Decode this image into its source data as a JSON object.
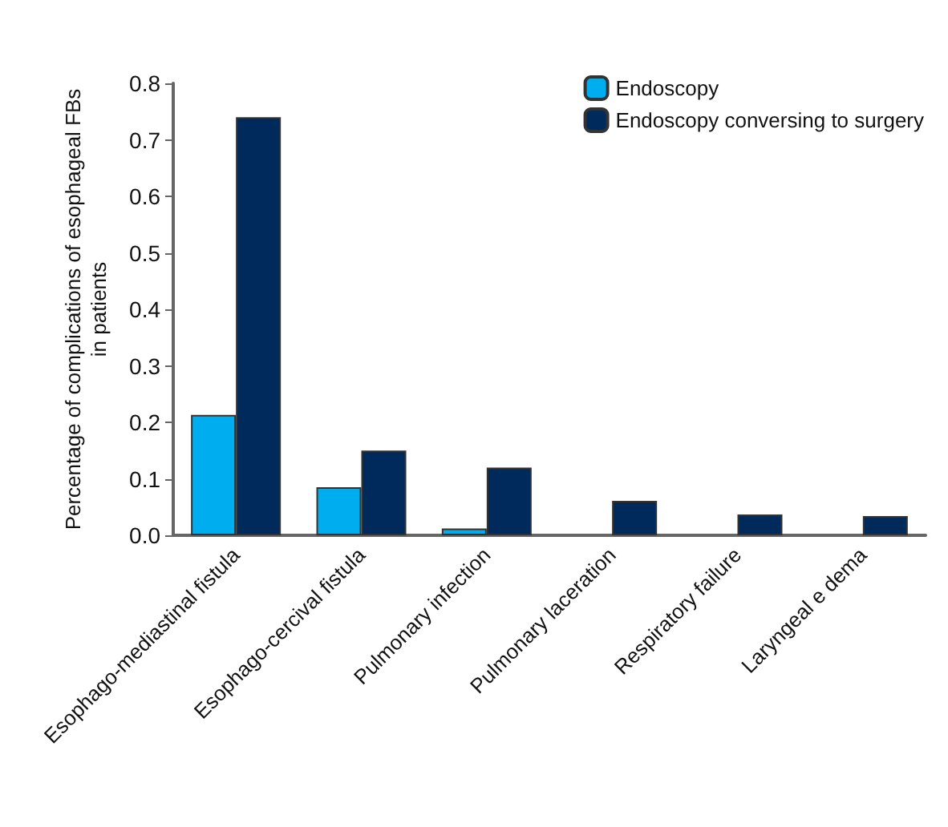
{
  "chart_data": {
    "type": "bar",
    "ylabel": "Percentage of complications of esophageal FBs\nin patients",
    "categories": [
      "Esophago-mediastinal fistula",
      "Esophago-cercival fistula",
      "Pulmonary infection",
      "Pulmonary laceration",
      "Respiratory failure",
      "Laryngeal e dema"
    ],
    "series": [
      {
        "name": "Endoscopy",
        "color": "#00aeef",
        "values": [
          0.213,
          0.085,
          0.012,
          null,
          null,
          null
        ]
      },
      {
        "name": "Endoscopy conversing to surgery",
        "color": "#002a5c",
        "values": [
          0.74,
          0.15,
          0.12,
          0.061,
          0.037,
          0.034
        ]
      }
    ],
    "ylim": [
      0,
      0.8
    ],
    "yticks": [
      "0.0",
      0.1,
      0.2,
      0.3,
      0.4,
      0.5,
      0.6,
      0.7,
      0.8
    ],
    "grid": false,
    "legend": "top right"
  }
}
